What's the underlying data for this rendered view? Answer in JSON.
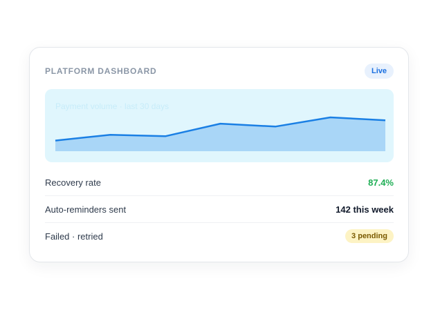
{
  "card": {
    "title": "PLATFORM DASHBOARD",
    "status_badge": "Live"
  },
  "chart": {
    "caption": "Payment volume · last 30 days",
    "accent_color": "#1a7fe4",
    "fill_color": "#a9d6f7"
  },
  "chart_data": {
    "type": "area",
    "title": "Payment volume · last 30 days",
    "x": [
      1,
      2,
      3,
      4,
      5,
      6,
      7
    ],
    "values": [
      22,
      34,
      31,
      57,
      51,
      70,
      64
    ],
    "ylim": [
      0,
      100
    ],
    "grid": false
  },
  "metrics": {
    "recovery": {
      "label": "Recovery rate",
      "value": "87.4%"
    },
    "reminders": {
      "label": "Auto-reminders sent",
      "value": "142 this week"
    },
    "failed": {
      "label": "Failed · retried",
      "badge": "3 pending"
    }
  },
  "colors": {
    "success": "#1fae55",
    "warning_bg": "#fdf3c4",
    "live_bg": "#e8f1fd"
  }
}
